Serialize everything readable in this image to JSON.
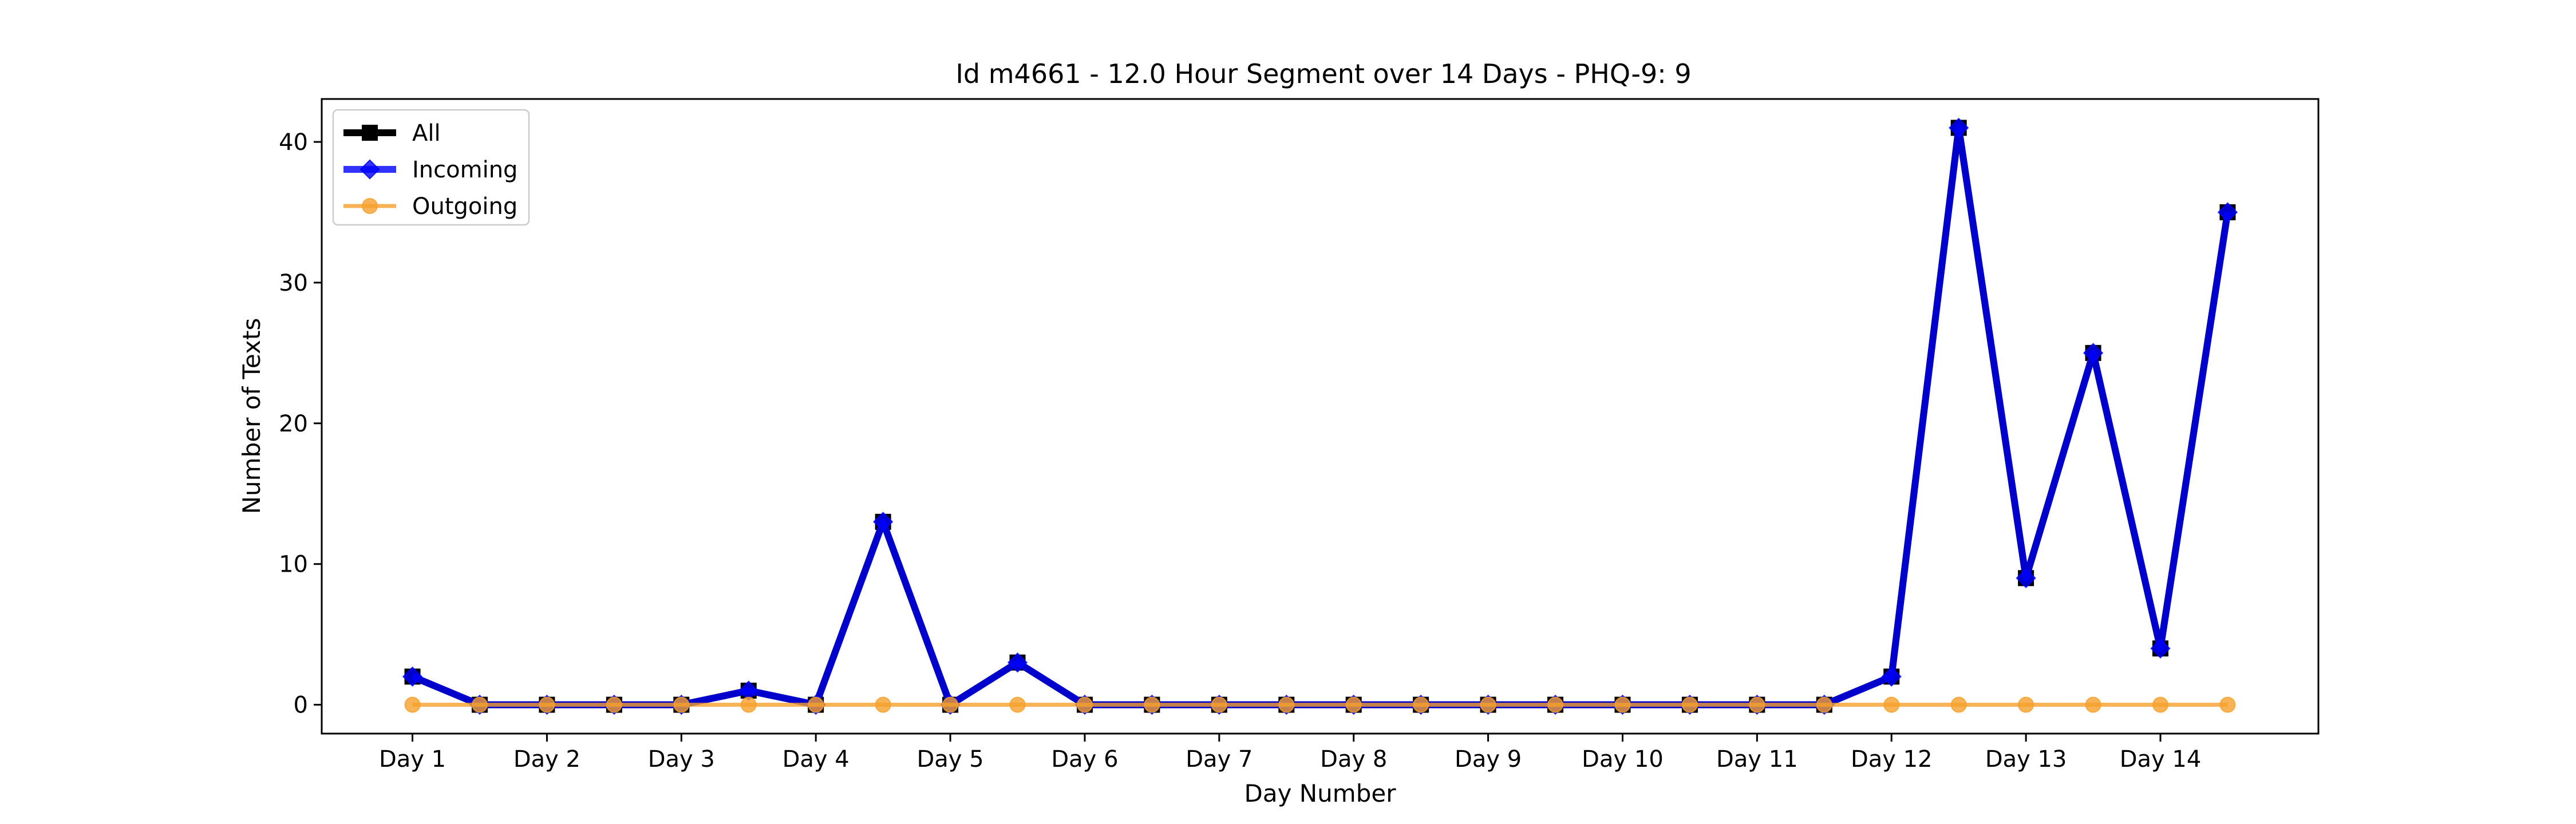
{
  "chart_data": {
    "type": "line",
    "title": "Id m4661 - 12.0 Hour Segment over 14 Days - PHQ-9: 9",
    "xlabel": "Day Number",
    "ylabel": "Number of Texts",
    "x_tick_labels": [
      "Day 1",
      "Day 2",
      "Day 3",
      "Day 4",
      "Day 5",
      "Day 6",
      "Day 7",
      "Day 8",
      "Day 9",
      "Day 10",
      "Day 11",
      "Day 12",
      "Day 13",
      "Day 14"
    ],
    "y_ticks": [
      0,
      10,
      20,
      30,
      40
    ],
    "ylim": [
      -2.05,
      43.05
    ],
    "x": [
      1,
      1.5,
      2,
      2.5,
      3,
      3.5,
      4,
      4.5,
      5,
      5.5,
      6,
      6.5,
      7,
      7.5,
      8,
      8.5,
      9,
      9.5,
      10,
      10.5,
      11,
      11.5,
      12,
      12.5,
      13,
      13.5,
      14,
      14.5
    ],
    "xlim": [
      0.325,
      15.175
    ],
    "legend_placement": "upper-left",
    "grid": false,
    "series": [
      {
        "name": "All",
        "color": "#000000",
        "marker": "square",
        "values": [
          2,
          0,
          0,
          0,
          0,
          1,
          0,
          13,
          0,
          3,
          0,
          0,
          0,
          0,
          0,
          0,
          0,
          0,
          0,
          0,
          0,
          0,
          2,
          41,
          9,
          25,
          4,
          35
        ]
      },
      {
        "name": "Incoming",
        "color": "#0000ff",
        "marker": "diamond",
        "values": [
          2,
          0,
          0,
          0,
          0,
          1,
          0,
          13,
          0,
          3,
          0,
          0,
          0,
          0,
          0,
          0,
          0,
          0,
          0,
          0,
          0,
          0,
          2,
          41,
          9,
          25,
          4,
          35
        ]
      },
      {
        "name": "Outgoing",
        "color": "#f5a02a",
        "marker": "circle",
        "values": [
          0,
          0,
          0,
          0,
          0,
          0,
          0,
          0,
          0,
          0,
          0,
          0,
          0,
          0,
          0,
          0,
          0,
          0,
          0,
          0,
          0,
          0,
          0,
          0,
          0,
          0,
          0,
          0
        ]
      }
    ]
  }
}
